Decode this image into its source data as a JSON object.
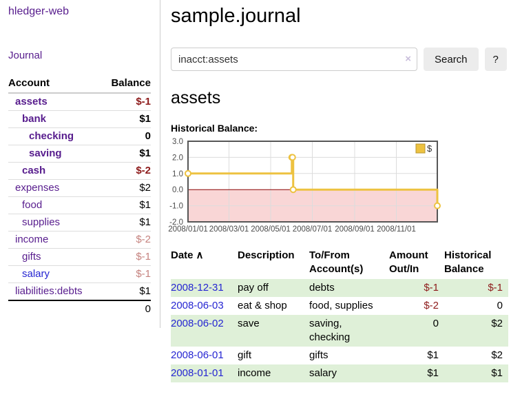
{
  "colors": {
    "accent_purple": "#571c8d",
    "link_blue": "#2525d2",
    "negative_strong": "#8d1a1a",
    "negative_dimmed": "#c5827e",
    "row_stripe_green": "#dff0d8"
  },
  "sidebar": {
    "app_title": "hledger-web",
    "nav_journal": "Journal",
    "accounts_table": {
      "headers": [
        "Account",
        "Balance"
      ],
      "rows": [
        {
          "name": "assets",
          "balance": "$-1",
          "indent": 1,
          "in_query": true,
          "negative": true,
          "dimmed": false,
          "link_style": "visited"
        },
        {
          "name": "bank",
          "balance": "$1",
          "indent": 2,
          "in_query": true,
          "negative": false,
          "dimmed": false,
          "link_style": "visited"
        },
        {
          "name": "checking",
          "balance": "0",
          "indent": 3,
          "in_query": true,
          "negative": false,
          "dimmed": false,
          "link_style": "visited"
        },
        {
          "name": "saving",
          "balance": "$1",
          "indent": 3,
          "in_query": true,
          "negative": false,
          "dimmed": false,
          "link_style": "visited"
        },
        {
          "name": "cash",
          "balance": "$-2",
          "indent": 2,
          "in_query": true,
          "negative": true,
          "dimmed": false,
          "link_style": "visited"
        },
        {
          "name": "expenses",
          "balance": "$2",
          "indent": 1,
          "in_query": false,
          "negative": false,
          "dimmed": false,
          "link_style": "visited"
        },
        {
          "name": "food",
          "balance": "$1",
          "indent": 2,
          "in_query": false,
          "negative": false,
          "dimmed": false,
          "link_style": "visited"
        },
        {
          "name": "supplies",
          "balance": "$1",
          "indent": 2,
          "in_query": false,
          "negative": false,
          "dimmed": false,
          "link_style": "visited"
        },
        {
          "name": "income",
          "balance": "$-2",
          "indent": 1,
          "in_query": false,
          "negative": true,
          "dimmed": true,
          "link_style": "visited"
        },
        {
          "name": "gifts",
          "balance": "$-1",
          "indent": 2,
          "in_query": false,
          "negative": true,
          "dimmed": true,
          "link_style": "visited"
        },
        {
          "name": "salary",
          "balance": "$-1",
          "indent": 2,
          "in_query": false,
          "negative": true,
          "dimmed": true,
          "link_style": "unvisited"
        },
        {
          "name": "liabilities:debts",
          "balance": "$1",
          "indent": 1,
          "in_query": false,
          "negative": false,
          "dimmed": false,
          "link_style": "visited"
        }
      ],
      "total": "0"
    }
  },
  "main": {
    "title": "sample.journal",
    "search": {
      "value": "inacct:assets",
      "clear_icon": "×",
      "button_label": "Search",
      "help_label": "?"
    },
    "account_heading": "assets"
  },
  "chart_data": {
    "type": "line",
    "title": "Historical Balance:",
    "step": true,
    "series": [
      {
        "name": "$",
        "color": "#edc240",
        "marker_fill": "#ffffff",
        "points": [
          [
            "2008-01-01",
            1
          ],
          [
            "2008-06-01",
            2
          ],
          [
            "2008-06-02",
            2
          ],
          [
            "2008-06-03",
            0
          ],
          [
            "2008-12-31",
            -1
          ]
        ]
      }
    ],
    "xlim": [
      "2008-01-01",
      "2008-12-31"
    ],
    "ylim": [
      -2,
      3
    ],
    "x_ticks": [
      {
        "date": "2008-01-01",
        "label": "2008/01/01"
      },
      {
        "date": "2008-03-01",
        "label": "2008/03/01"
      },
      {
        "date": "2008-05-01",
        "label": "2008/05/01"
      },
      {
        "date": "2008-07-01",
        "label": "2008/07/01"
      },
      {
        "date": "2008-09-01",
        "label": "2008/09/01"
      },
      {
        "date": "2008-11-01",
        "label": "2008/11/01"
      }
    ],
    "y_ticks": [
      {
        "v": 3,
        "label": "3.0"
      },
      {
        "v": 2,
        "label": "2.0"
      },
      {
        "v": 1,
        "label": "1.0"
      },
      {
        "v": 0,
        "label": "0.0"
      },
      {
        "v": -1,
        "label": "-1.0"
      },
      {
        "v": -2,
        "label": "-2.0"
      }
    ],
    "legend": {
      "label": "$",
      "position": "top-right"
    },
    "grid": true,
    "grid_color": "#dcdcdc",
    "border_color": "#565656",
    "tick_label_color": "#4a4a4a",
    "zero_line_color": "#8b0000",
    "negative_region_color": "#f9d6d6"
  },
  "register": {
    "headers": {
      "date": "Date",
      "description": "Description",
      "account": "To/From Account(s)",
      "amount": "Amount Out/In",
      "balance": "Historical Balance"
    },
    "sort_icon": "∧",
    "rows": [
      {
        "date": "2008-12-31",
        "description": "pay off",
        "accounts": "debts",
        "amount": "$-1",
        "amount_negative": true,
        "balance": "$-1",
        "balance_negative": true
      },
      {
        "date": "2008-06-03",
        "description": "eat & shop",
        "accounts": "food, supplies",
        "amount": "$-2",
        "amount_negative": true,
        "balance": "0",
        "balance_negative": false
      },
      {
        "date": "2008-06-02",
        "description": "save",
        "accounts": "saving, checking",
        "amount": "0",
        "amount_negative": false,
        "balance": "$2",
        "balance_negative": false
      },
      {
        "date": "2008-06-01",
        "description": "gift",
        "accounts": "gifts",
        "amount": "$1",
        "amount_negative": false,
        "balance": "$2",
        "balance_negative": false
      },
      {
        "date": "2008-01-01",
        "description": "income",
        "accounts": "salary",
        "amount": "$1",
        "amount_negative": false,
        "balance": "$1",
        "balance_negative": false
      }
    ]
  }
}
